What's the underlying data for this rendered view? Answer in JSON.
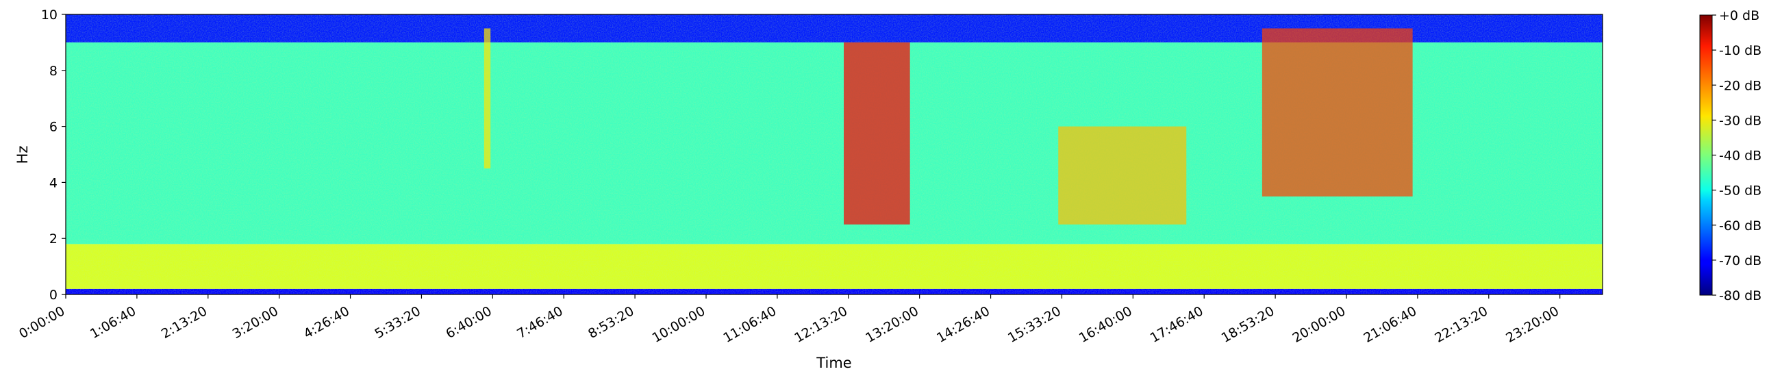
{
  "chart_data": {
    "type": "heatmap",
    "subtype": "spectrogram",
    "colormap": "jet",
    "xlabel": "Time",
    "ylabel": "Hz",
    "ylim": [
      0,
      10
    ],
    "x_duration_seconds": 86400,
    "x_ticks": [
      "0:00:00",
      "1:06:40",
      "2:13:20",
      "3:20:00",
      "4:26:40",
      "5:33:20",
      "6:40:00",
      "7:46:40",
      "8:53:20",
      "10:00:00",
      "11:06:40",
      "12:13:20",
      "13:20:00",
      "14:26:40",
      "15:33:20",
      "16:40:00",
      "17:46:40",
      "18:53:20",
      "20:00:00",
      "21:06:40",
      "22:13:20",
      "23:20:00"
    ],
    "y_ticks": [
      0,
      2,
      4,
      6,
      8,
      10
    ],
    "colorbar": {
      "range_db": [
        -80,
        0
      ],
      "ticks": [
        "+0 dB",
        "-10 dB",
        "-20 dB",
        "-30 dB",
        "-40 dB",
        "-50 dB",
        "-60 dB",
        "-70 dB",
        "-80 dB"
      ]
    },
    "background_levels_db": [
      {
        "band_hz": [
          0,
          0.2
        ],
        "level_db": -70
      },
      {
        "band_hz": [
          0.2,
          1.8
        ],
        "level_db": -33
      },
      {
        "band_hz": [
          1.8,
          9.0
        ],
        "level_db": -45
      },
      {
        "band_hz": [
          9.0,
          10
        ],
        "level_db": -68
      }
    ],
    "events": [
      {
        "start": "12:09:00",
        "end": "13:11:00",
        "band_hz": [
          2.5,
          9.0
        ],
        "peak_db": -10
      },
      {
        "start": "18:41:00",
        "end": "21:02:00",
        "band_hz": [
          3.5,
          9.5
        ],
        "peak_db": -15
      },
      {
        "start": "6:32:00",
        "end": "6:38:00",
        "band_hz": [
          4.5,
          9.5
        ],
        "peak_db": -28
      },
      {
        "start": "15:30:00",
        "end": "17:30:00",
        "band_hz": [
          2.5,
          6.0
        ],
        "peak_db": -25
      }
    ],
    "grid": false
  }
}
